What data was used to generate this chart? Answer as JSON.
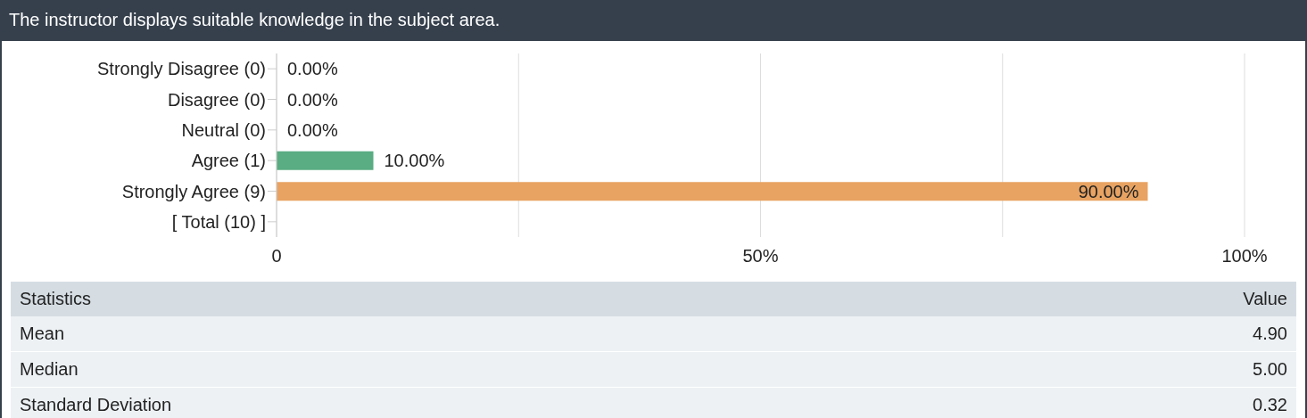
{
  "chart_data": {
    "type": "bar",
    "orientation": "horizontal",
    "title": "The instructor displays suitable knowledge in the subject area.",
    "categories": [
      "Strongly Disagree (0)",
      "Disagree (0)",
      "Neutral (0)",
      "Agree (1)",
      "Strongly Agree (9)",
      "[ Total (10) ]"
    ],
    "values": [
      0,
      0,
      0,
      10,
      90,
      null
    ],
    "colors": [
      null,
      null,
      null,
      "#5aac82",
      "#e8a362",
      null
    ],
    "value_labels": [
      "0.00%",
      "0.00%",
      "0.00%",
      "10.00%",
      "90.00%",
      null
    ],
    "xlim": [
      0,
      100
    ],
    "xticks": [
      0,
      {
        "value": 25,
        "label": null
      },
      {
        "value": 50,
        "label": "50%"
      },
      {
        "value": 75,
        "label": null
      },
      {
        "value": 100,
        "label": "100%"
      }
    ],
    "grid": "x",
    "legend": false,
    "annotations": [
      "Statistics",
      "Value",
      "Mean",
      "4.90",
      "Median",
      "5.00",
      "Standard Deviation",
      "0.32"
    ]
  }
}
